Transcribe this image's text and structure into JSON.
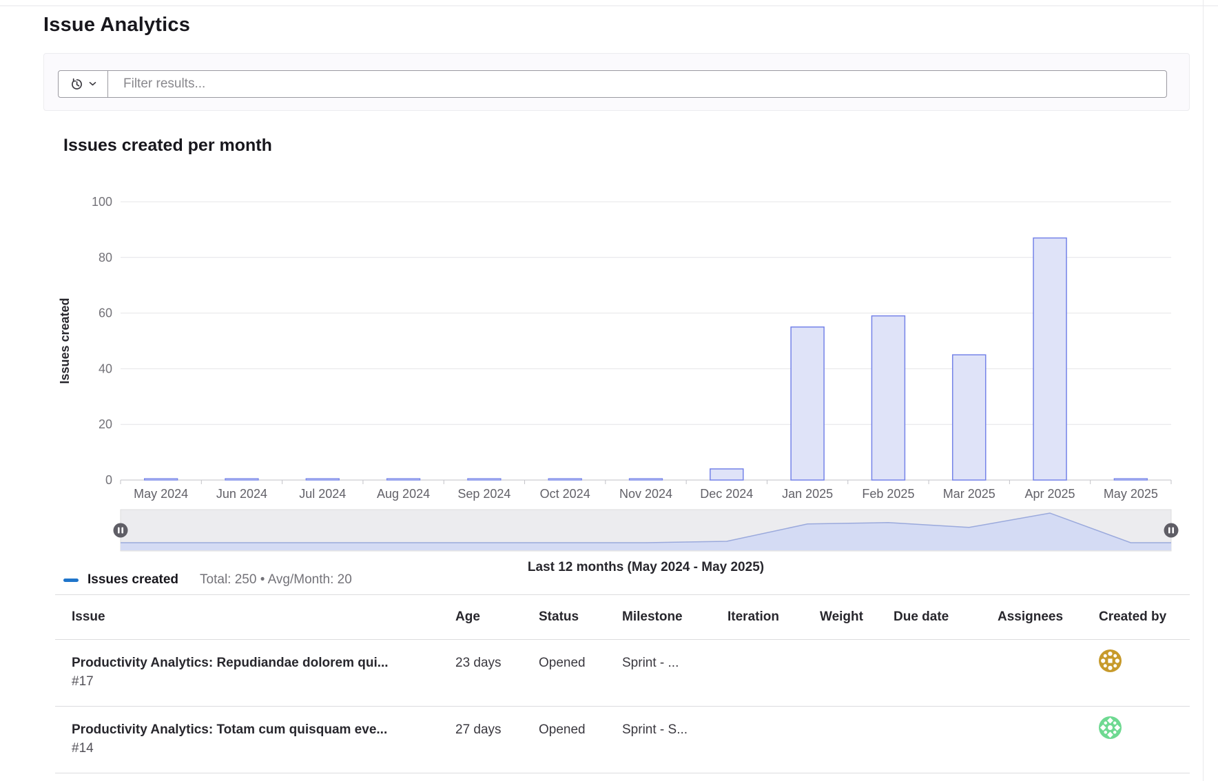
{
  "page": {
    "title": "Issue Analytics"
  },
  "filter": {
    "placeholder": "Filter results...",
    "history_button_icons": [
      "history-icon",
      "chevron-down-icon"
    ]
  },
  "chart_data": {
    "type": "bar",
    "title": "Issues created per month",
    "categories": [
      "May 2024",
      "Jun 2024",
      "Jul 2024",
      "Aug 2024",
      "Sep 2024",
      "Oct 2024",
      "Nov 2024",
      "Dec 2024",
      "Jan 2025",
      "Feb 2025",
      "Mar 2025",
      "Apr 2025",
      "May 2025"
    ],
    "values": [
      0,
      0,
      0,
      0,
      0,
      0,
      0,
      4,
      55,
      59,
      45,
      87,
      0
    ],
    "ylabel": "Issues created",
    "xlabel": "Last 12 months (May 2024 - May 2025)",
    "ylim": [
      0,
      100
    ],
    "yticks": [
      0,
      20,
      40,
      60,
      80,
      100
    ],
    "grid": true,
    "data_zoom_slider": true,
    "legend_position": "bottom-left",
    "legend_label": "Issues created",
    "legend_summary": "Total: 250 • Avg/Month: 20",
    "legend_color": "#1f75cb",
    "bar_fill": "#dfe3f8",
    "bar_stroke": "#7482e8"
  },
  "table": {
    "columns": [
      "Issue",
      "Age",
      "Status",
      "Milestone",
      "Iteration",
      "Weight",
      "Due date",
      "Assignees",
      "Created by"
    ],
    "rows": [
      {
        "title": "Productivity Analytics: Repudiandae dolorem qui...",
        "issue_id": "#17",
        "age": "23 days",
        "status": "Opened",
        "milestone": "Sprint - ...",
        "iteration": "",
        "weight": "",
        "due_date": "",
        "assignees": "",
        "created_by_avatar_color": "#c79a2b"
      },
      {
        "title": "Productivity Analytics: Totam cum quisquam eve...",
        "issue_id": "#14",
        "age": "27 days",
        "status": "Opened",
        "milestone": "Sprint - S...",
        "iteration": "",
        "weight": "",
        "due_date": "",
        "assignees": "",
        "created_by_avatar_color": "#6ed991"
      }
    ]
  }
}
